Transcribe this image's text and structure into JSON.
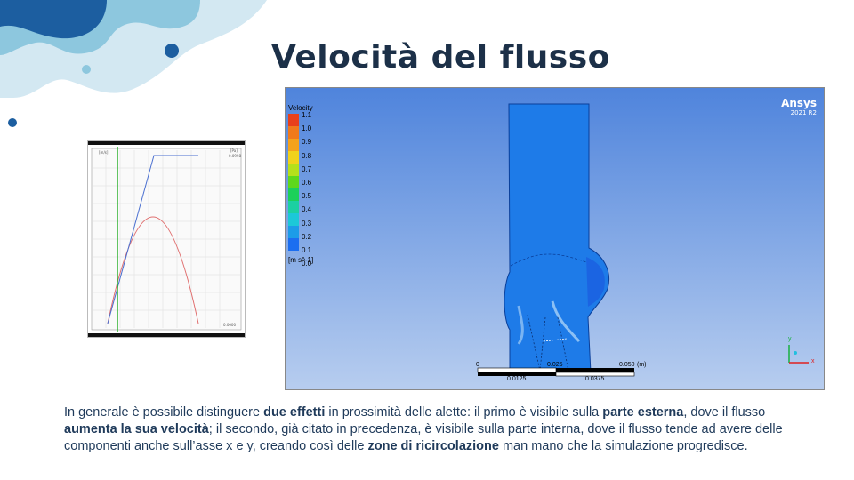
{
  "slide": {
    "title": "Velocità del flusso",
    "caption": {
      "p1": "In generale è possibile distinguere ",
      "b1": "due effetti",
      "p2": " in prossimità delle alette: il primo è visibile sulla ",
      "b2": "parte esterna",
      "p3": ", dove il flusso ",
      "b3": "aumenta la sua velocità",
      "p4": "; il secondo, già citato in precedenza, è visibile sulla parte interna, dove il flusso tende ad avere delle componenti anche sull’asse x e y, creando così delle ",
      "b4": "zone di ricircolazione",
      "p5": " man mano che la simulazione progredisce."
    }
  },
  "simulation": {
    "legend_title": "Velocity",
    "legend_ticks": [
      "1.1",
      "1.0",
      "0.9",
      "0.8",
      "0.7",
      "0.6",
      "0.5",
      "0.4",
      "0.3",
      "0.2",
      "0.1",
      "0.0"
    ],
    "legend_colors": [
      "#e8401c",
      "#f07a1c",
      "#f4a21c",
      "#f0d21c",
      "#b4e01c",
      "#5ed81c",
      "#1cd05a",
      "#1cd0a2",
      "#1cc8d8",
      "#1c9ce8",
      "#1c6ef0"
    ],
    "legend_unit": "[m s^-1]",
    "brand": "Ansys",
    "version": "2021 R2",
    "scale": {
      "top_left": "0",
      "top_mid": "0.025",
      "top_right": "0.050",
      "unit": "(m)",
      "bottom_left": "0.0125",
      "bottom_right": "0.0375"
    },
    "axis_y": "y",
    "axis_x": "x"
  },
  "plot": {
    "y_left_unit": "[m/s]",
    "y_right_unit": "[Pa]",
    "right_top_value": "0.0998",
    "right_bottom_value": "0.0000"
  },
  "colors": {
    "title": "#1c3048",
    "caption": "#1f3a5a",
    "domain_fill": "#1e7be8",
    "plot_red": "#e07070",
    "plot_blue": "#4a6fd0",
    "plot_green": "#2fb12f"
  }
}
